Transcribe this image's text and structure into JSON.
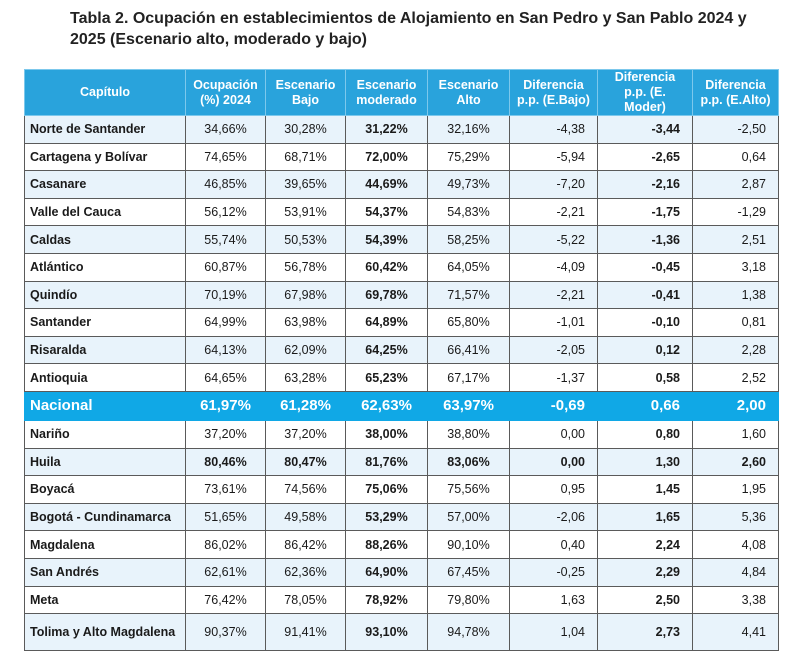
{
  "title": "Tabla 2. Ocupación en establecimientos de Alojamiento en San Pedro y San Pablo 2024 y 2025 (Escenario alto, moderado y bajo)",
  "headers": [
    "Capítulo",
    "Ocupación (%) 2024",
    "Escenario Bajo",
    "Escenario moderado",
    "Escenario Alto",
    "Diferencia p.p. (E.Bajo)",
    "Diferencia p.p. (E. Moder)",
    "Diferencia p.p. (E.Alto)"
  ],
  "rows": [
    {
      "name": "Norte de Santander",
      "occ": "34,66%",
      "bajo": "30,28%",
      "mod": "31,22%",
      "alto": "32,16%",
      "dbajo": "-4,38",
      "dmod": "-3,44",
      "dalto": "-2,50"
    },
    {
      "name": "Cartagena y Bolívar",
      "occ": "74,65%",
      "bajo": "68,71%",
      "mod": "72,00%",
      "alto": "75,29%",
      "dbajo": "-5,94",
      "dmod": "-2,65",
      "dalto": "0,64"
    },
    {
      "name": "Casanare",
      "occ": "46,85%",
      "bajo": "39,65%",
      "mod": "44,69%",
      "alto": "49,73%",
      "dbajo": "-7,20",
      "dmod": "-2,16",
      "dalto": "2,87"
    },
    {
      "name": "Valle del Cauca",
      "occ": "56,12%",
      "bajo": "53,91%",
      "mod": "54,37%",
      "alto": "54,83%",
      "dbajo": "-2,21",
      "dmod": "-1,75",
      "dalto": "-1,29"
    },
    {
      "name": "Caldas",
      "occ": "55,74%",
      "bajo": "50,53%",
      "mod": "54,39%",
      "alto": "58,25%",
      "dbajo": "-5,22",
      "dmod": "-1,36",
      "dalto": "2,51"
    },
    {
      "name": "Atlántico",
      "occ": "60,87%",
      "bajo": "56,78%",
      "mod": "60,42%",
      "alto": "64,05%",
      "dbajo": "-4,09",
      "dmod": "-0,45",
      "dalto": "3,18"
    },
    {
      "name": "Quindío",
      "occ": "70,19%",
      "bajo": "67,98%",
      "mod": "69,78%",
      "alto": "71,57%",
      "dbajo": "-2,21",
      "dmod": "-0,41",
      "dalto": "1,38"
    },
    {
      "name": "Santander",
      "occ": "64,99%",
      "bajo": "63,98%",
      "mod": "64,89%",
      "alto": "65,80%",
      "dbajo": "-1,01",
      "dmod": "-0,10",
      "dalto": "0,81"
    },
    {
      "name": "Risaralda",
      "occ": "64,13%",
      "bajo": "62,09%",
      "mod": "64,25%",
      "alto": "66,41%",
      "dbajo": "-2,05",
      "dmod": "0,12",
      "dalto": "2,28"
    },
    {
      "name": "Antioquia",
      "occ": "64,65%",
      "bajo": "63,28%",
      "mod": "65,23%",
      "alto": "67,17%",
      "dbajo": "-1,37",
      "dmod": "0,58",
      "dalto": "2,52"
    }
  ],
  "nacional": {
    "name": "Nacional",
    "occ": "61,97%",
    "bajo": "61,28%",
    "mod": "62,63%",
    "alto": "63,97%",
    "dbajo": "-0,69",
    "dmod": "0,66",
    "dalto": "2,00"
  },
  "rows2": [
    {
      "name": "Nariño",
      "occ": "37,20%",
      "bajo": "37,20%",
      "mod": "38,00%",
      "alto": "38,80%",
      "dbajo": "0,00",
      "dmod": "0,80",
      "dalto": "1,60"
    },
    {
      "name": "Huila",
      "occ": "80,46%",
      "bajo": "80,47%",
      "mod": "81,76%",
      "alto": "83,06%",
      "dbajo": "0,00",
      "dmod": "1,30",
      "dalto": "2,60"
    },
    {
      "name": "Boyacá",
      "occ": "73,61%",
      "bajo": "74,56%",
      "mod": "75,06%",
      "alto": "75,56%",
      "dbajo": "0,95",
      "dmod": "1,45",
      "dalto": "1,95"
    },
    {
      "name": "Bogotá - Cundinamarca",
      "occ": "51,65%",
      "bajo": "49,58%",
      "mod": "53,29%",
      "alto": "57,00%",
      "dbajo": "-2,06",
      "dmod": "1,65",
      "dalto": "5,36"
    },
    {
      "name": "Magdalena",
      "occ": "86,02%",
      "bajo": "86,42%",
      "mod": "88,26%",
      "alto": "90,10%",
      "dbajo": "0,40",
      "dmod": "2,24",
      "dalto": "4,08"
    },
    {
      "name": "San Andrés",
      "occ": "62,61%",
      "bajo": "62,36%",
      "mod": "64,90%",
      "alto": "67,45%",
      "dbajo": "-0,25",
      "dmod": "2,29",
      "dalto": "4,84"
    },
    {
      "name": "Meta",
      "occ": "76,42%",
      "bajo": "78,05%",
      "mod": "78,92%",
      "alto": "79,80%",
      "dbajo": "1,63",
      "dmod": "2,50",
      "dalto": "3,38"
    },
    {
      "name": "Tolima y Alto Magdalena",
      "occ": "90,37%",
      "bajo": "91,41%",
      "mod": "93,10%",
      "alto": "94,78%",
      "dbajo": "1,04",
      "dmod": "2,73",
      "dalto": "4,41"
    }
  ]
}
